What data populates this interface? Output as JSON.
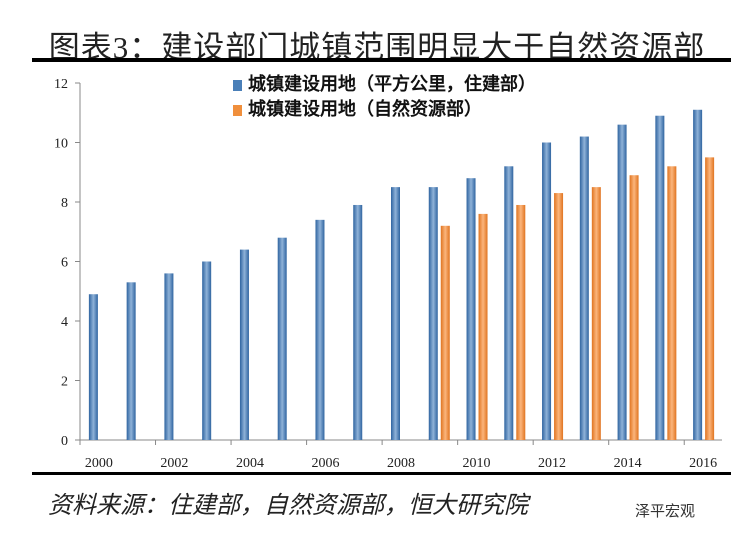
{
  "title": "图表3：建设部门城镇范围明显大于自然资源部",
  "source": "资料来源：住建部，自然资源部，恒大研究院",
  "watermark": "泽平宏观",
  "chart_data": {
    "type": "bar",
    "categories": [
      "2000",
      "2001",
      "2002",
      "2003",
      "2004",
      "2005",
      "2006",
      "2007",
      "2008",
      "2009",
      "2010",
      "2011",
      "2012",
      "2013",
      "2014",
      "2015",
      "2016"
    ],
    "x_tick_labels": [
      "2000",
      "2002",
      "2004",
      "2006",
      "2008",
      "2010",
      "2012",
      "2014",
      "2016"
    ],
    "y_tick_labels": [
      "0",
      "2",
      "4",
      "6",
      "8",
      "10",
      "12"
    ],
    "ylim": [
      0,
      12
    ],
    "grid": false,
    "legend_position": "top",
    "series": [
      {
        "name": "城镇建设用地（平方公里，住建部）",
        "color": "#4a7fb8",
        "values": [
          4.9,
          5.3,
          5.6,
          6.0,
          6.4,
          6.8,
          7.4,
          7.9,
          8.5,
          8.5,
          8.8,
          9.2,
          10.0,
          10.2,
          10.6,
          10.9,
          11.1
        ]
      },
      {
        "name": "城镇建设用地（自然资源部）",
        "color": "#f08f3c",
        "values": [
          null,
          null,
          null,
          null,
          null,
          null,
          null,
          null,
          null,
          7.2,
          7.6,
          7.9,
          8.3,
          8.5,
          8.9,
          9.2,
          9.5
        ]
      }
    ]
  }
}
